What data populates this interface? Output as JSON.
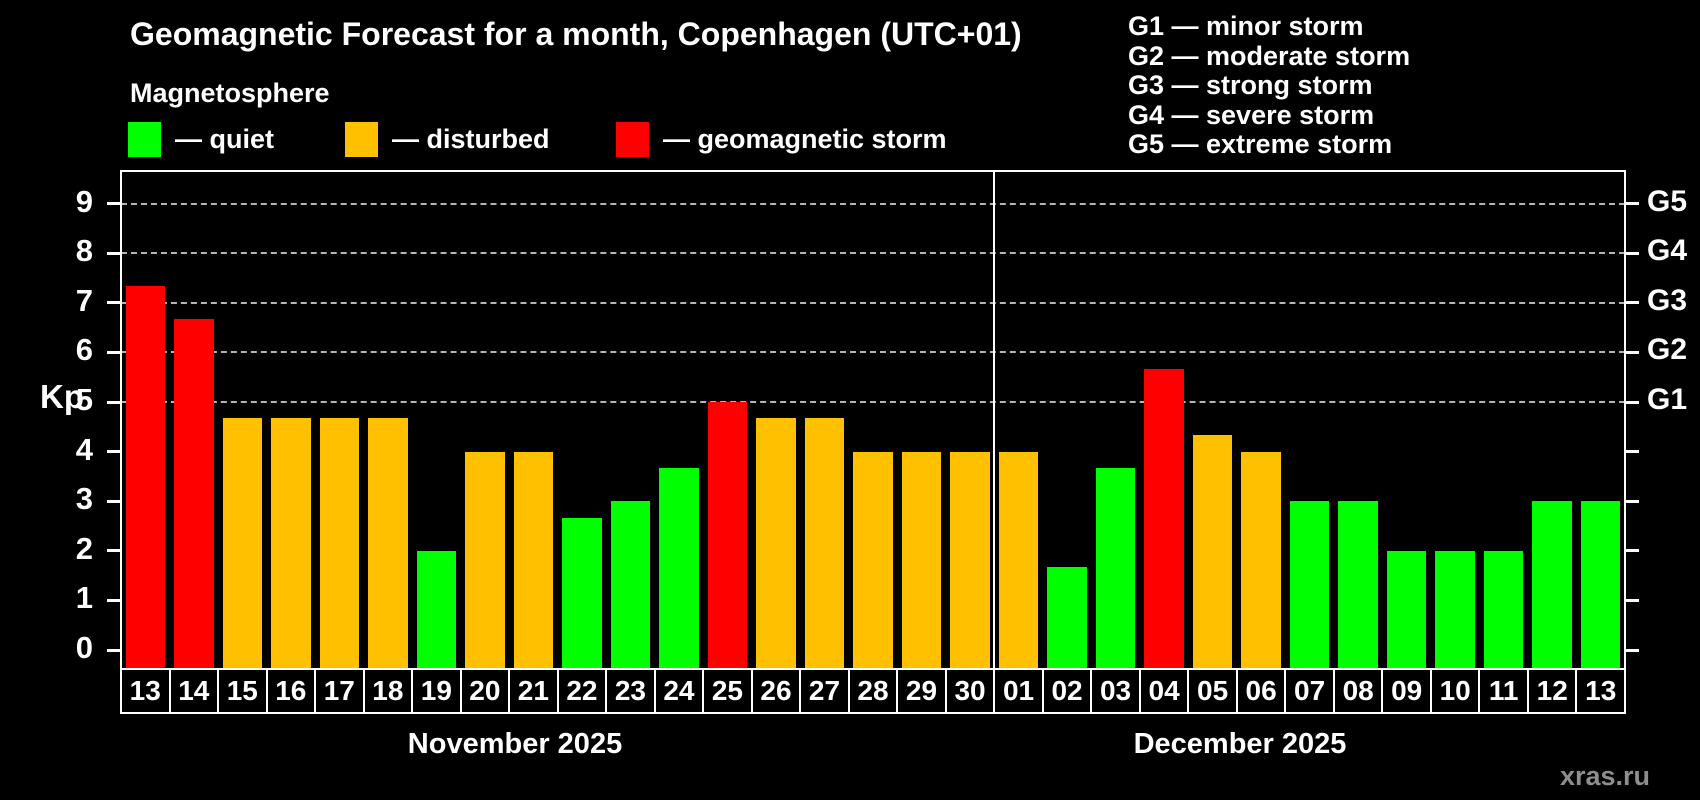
{
  "header": {
    "title": "Geomagnetic Forecast for a month, Copenhagen (UTC+01)",
    "subtitle": "Magnetosphere"
  },
  "legend": {
    "items": [
      {
        "label": "— quiet",
        "status": "quiet"
      },
      {
        "label": "— disturbed",
        "status": "disturbed"
      },
      {
        "label": "— geomagnetic storm",
        "status": "storm"
      }
    ]
  },
  "g_legend": {
    "lines": [
      "G1 — minor storm",
      "G2 — moderate storm",
      "G3 — strong storm",
      "G4 — severe storm",
      "G5 — extreme storm"
    ]
  },
  "watermark": "xras.ru",
  "chart_data": {
    "type": "bar",
    "title": "Geomagnetic Forecast for a month, Copenhagen (UTC+01)",
    "ylabel": "Kp",
    "ylim": [
      0,
      9
    ],
    "grid": "dashed horizontal at storm levels",
    "grid_levels": [
      5,
      6,
      7,
      8,
      9
    ],
    "y_ticks": [
      0,
      1,
      2,
      3,
      4,
      5,
      6,
      7,
      8,
      9
    ],
    "right_axis": [
      {
        "kp": 5,
        "label": "G1"
      },
      {
        "kp": 6,
        "label": "G2"
      },
      {
        "kp": 7,
        "label": "G3"
      },
      {
        "kp": 8,
        "label": "G4"
      },
      {
        "kp": 9,
        "label": "G5"
      }
    ],
    "status_colors": {
      "quiet": "#00ff00",
      "disturbed": "#ffc000",
      "storm": "#ff0000"
    },
    "months": [
      {
        "label": "November 2025",
        "days": [
          {
            "day": "13",
            "kp": 7.33,
            "status": "storm"
          },
          {
            "day": "14",
            "kp": 6.67,
            "status": "storm"
          },
          {
            "day": "15",
            "kp": 4.67,
            "status": "disturbed"
          },
          {
            "day": "16",
            "kp": 4.67,
            "status": "disturbed"
          },
          {
            "day": "17",
            "kp": 4.67,
            "status": "disturbed"
          },
          {
            "day": "18",
            "kp": 4.67,
            "status": "disturbed"
          },
          {
            "day": "19",
            "kp": 2.0,
            "status": "quiet"
          },
          {
            "day": "20",
            "kp": 4.0,
            "status": "disturbed"
          },
          {
            "day": "21",
            "kp": 4.0,
            "status": "disturbed"
          },
          {
            "day": "22",
            "kp": 2.67,
            "status": "quiet"
          },
          {
            "day": "23",
            "kp": 3.0,
            "status": "quiet"
          },
          {
            "day": "24",
            "kp": 3.67,
            "status": "quiet"
          },
          {
            "day": "25",
            "kp": 5.0,
            "status": "storm"
          },
          {
            "day": "26",
            "kp": 4.67,
            "status": "disturbed"
          },
          {
            "day": "27",
            "kp": 4.67,
            "status": "disturbed"
          },
          {
            "day": "28",
            "kp": 4.0,
            "status": "disturbed"
          },
          {
            "day": "29",
            "kp": 4.0,
            "status": "disturbed"
          },
          {
            "day": "30",
            "kp": 4.0,
            "status": "disturbed"
          }
        ]
      },
      {
        "label": "December 2025",
        "days": [
          {
            "day": "01",
            "kp": 4.0,
            "status": "disturbed"
          },
          {
            "day": "02",
            "kp": 1.67,
            "status": "quiet"
          },
          {
            "day": "03",
            "kp": 3.67,
            "status": "quiet"
          },
          {
            "day": "04",
            "kp": 5.67,
            "status": "storm"
          },
          {
            "day": "05",
            "kp": 4.33,
            "status": "disturbed"
          },
          {
            "day": "06",
            "kp": 4.0,
            "status": "disturbed"
          },
          {
            "day": "07",
            "kp": 3.0,
            "status": "quiet"
          },
          {
            "day": "08",
            "kp": 3.0,
            "status": "quiet"
          },
          {
            "day": "09",
            "kp": 2.0,
            "status": "quiet"
          },
          {
            "day": "10",
            "kp": 2.0,
            "status": "quiet"
          },
          {
            "day": "11",
            "kp": 2.0,
            "status": "quiet"
          },
          {
            "day": "12",
            "kp": 3.0,
            "status": "quiet"
          },
          {
            "day": "13",
            "kp": 3.0,
            "status": "quiet"
          }
        ]
      }
    ]
  }
}
